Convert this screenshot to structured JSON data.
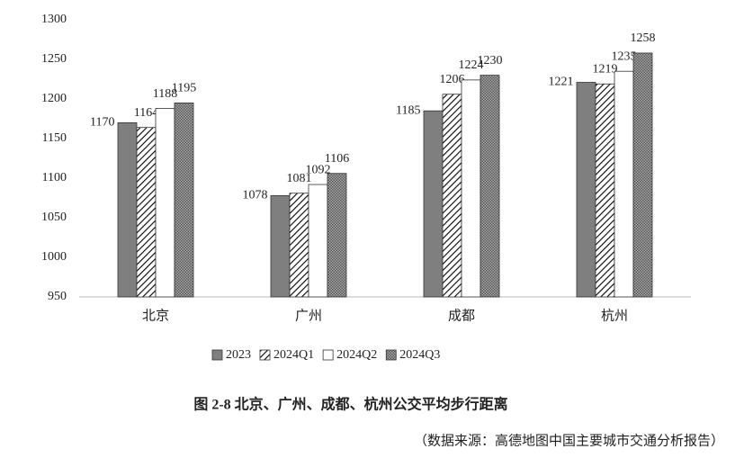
{
  "chart_data": {
    "type": "bar",
    "title": "图 2-8  北京、广州、成都、杭州公交平均步行距离",
    "source": "（数据来源：高德地图中国主要城市交通分析报告）",
    "categories": [
      "北京",
      "广州",
      "成都",
      "杭州"
    ],
    "series": [
      {
        "name": "2023",
        "color": "#7f7f7f",
        "pattern": "solid",
        "values": [
          1170,
          1078,
          1185,
          1221
        ]
      },
      {
        "name": "2024Q1",
        "color": "#000000",
        "pattern": "diagonal",
        "values": [
          1164,
          1081,
          1206,
          1219
        ]
      },
      {
        "name": "2024Q2",
        "color": "#ffffff",
        "pattern": "solid",
        "values": [
          1188,
          1092,
          1224,
          1235
        ]
      },
      {
        "name": "2024Q3",
        "color": "#555555",
        "pattern": "dots",
        "values": [
          1195,
          1106,
          1230,
          1258
        ]
      }
    ],
    "ylim": [
      950,
      1300
    ],
    "yticks": [
      950,
      1000,
      1050,
      1100,
      1150,
      1200,
      1250,
      1300
    ],
    "grid": false,
    "legend": "bottom"
  }
}
